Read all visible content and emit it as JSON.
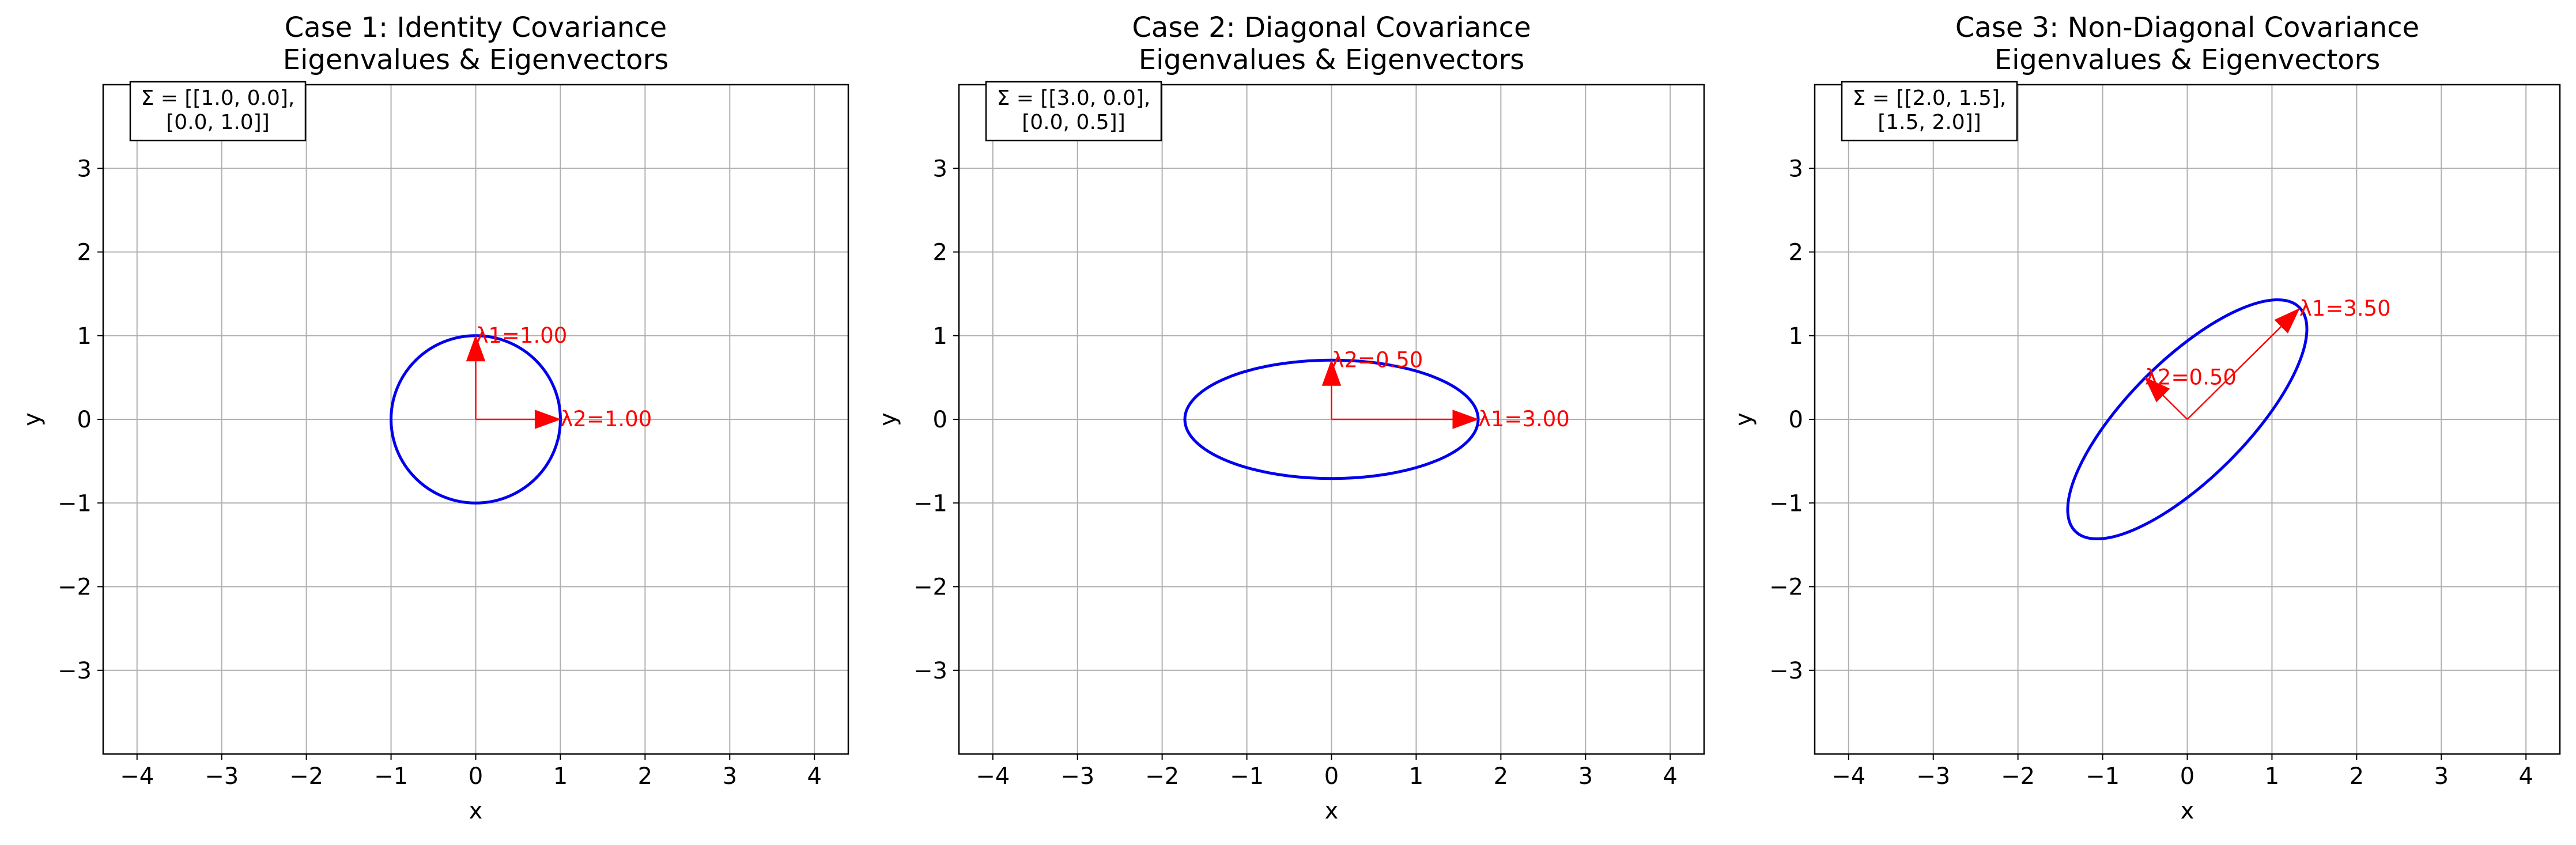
{
  "chart_data": [
    {
      "type": "line",
      "title": "Case 1: Identity Covariance\nEigenvalues & Eigenvectors",
      "xlabel": "x",
      "ylabel": "y",
      "xlim": [
        -4.4,
        4.4
      ],
      "ylim": [
        -4.0,
        4.0
      ],
      "xticks": [
        -4,
        -3,
        -2,
        -1,
        0,
        1,
        2,
        3,
        4
      ],
      "yticks": [
        -3,
        -2,
        -1,
        0,
        1,
        2,
        3
      ],
      "grid": true,
      "covariance": [
        [
          1.0,
          0.0
        ],
        [
          0.0,
          1.0
        ]
      ],
      "matrix_label": [
        "Σ = [[1.0, 0.0],",
        "[0.0, 1.0]]"
      ],
      "ellipse": {
        "center": [
          0,
          0
        ],
        "semi_major": 1.0,
        "semi_minor": 1.0,
        "angle_deg": 0,
        "color": "#0000ee"
      },
      "eigenvectors": [
        {
          "label": "λ1=1.00",
          "eigenvalue": 1.0,
          "direction": [
            0,
            1
          ],
          "tip": [
            0,
            1.0
          ],
          "color": "#ff0000"
        },
        {
          "label": "λ2=1.00",
          "eigenvalue": 1.0,
          "direction": [
            1,
            0
          ],
          "tip": [
            1.0,
            0
          ],
          "color": "#ff0000"
        }
      ]
    },
    {
      "type": "line",
      "title": "Case 2: Diagonal Covariance\nEigenvalues & Eigenvectors",
      "xlabel": "x",
      "ylabel": "y",
      "xlim": [
        -4.4,
        4.4
      ],
      "ylim": [
        -4.0,
        4.0
      ],
      "xticks": [
        -4,
        -3,
        -2,
        -1,
        0,
        1,
        2,
        3,
        4
      ],
      "yticks": [
        -3,
        -2,
        -1,
        0,
        1,
        2,
        3
      ],
      "grid": true,
      "covariance": [
        [
          3.0,
          0.0
        ],
        [
          0.0,
          0.5
        ]
      ],
      "matrix_label": [
        "Σ = [[3.0, 0.0],",
        "[0.0, 0.5]]"
      ],
      "ellipse": {
        "center": [
          0,
          0
        ],
        "semi_major": 1.732,
        "semi_minor": 0.707,
        "angle_deg": 0,
        "color": "#0000ee"
      },
      "eigenvectors": [
        {
          "label": "λ1=3.00",
          "eigenvalue": 3.0,
          "direction": [
            1,
            0
          ],
          "tip": [
            1.732,
            0
          ],
          "color": "#ff0000"
        },
        {
          "label": "λ2=0.50",
          "eigenvalue": 0.5,
          "direction": [
            0,
            1
          ],
          "tip": [
            0,
            0.707
          ],
          "color": "#ff0000"
        }
      ]
    },
    {
      "type": "line",
      "title": "Case 3: Non-Diagonal Covariance\nEigenvalues & Eigenvectors",
      "xlabel": "x",
      "ylabel": "y",
      "xlim": [
        -4.4,
        4.4
      ],
      "ylim": [
        -4.0,
        4.0
      ],
      "xticks": [
        -4,
        -3,
        -2,
        -1,
        0,
        1,
        2,
        3,
        4
      ],
      "yticks": [
        -3,
        -2,
        -1,
        0,
        1,
        2,
        3
      ],
      "grid": true,
      "covariance": [
        [
          2.0,
          1.5
        ],
        [
          1.5,
          2.0
        ]
      ],
      "matrix_label": [
        "Σ = [[2.0, 1.5],",
        "[1.5, 2.0]]"
      ],
      "ellipse": {
        "center": [
          0,
          0
        ],
        "semi_major": 1.871,
        "semi_minor": 0.707,
        "angle_deg": 45,
        "color": "#0000ee"
      },
      "eigenvectors": [
        {
          "label": "λ1=3.50",
          "eigenvalue": 3.5,
          "direction": [
            0.7071,
            0.7071
          ],
          "tip": [
            1.323,
            1.323
          ],
          "color": "#ff0000"
        },
        {
          "label": "λ2=0.50",
          "eigenvalue": 0.5,
          "direction": [
            -0.7071,
            0.7071
          ],
          "tip": [
            -0.5,
            0.5
          ],
          "color": "#ff0000"
        }
      ]
    }
  ]
}
